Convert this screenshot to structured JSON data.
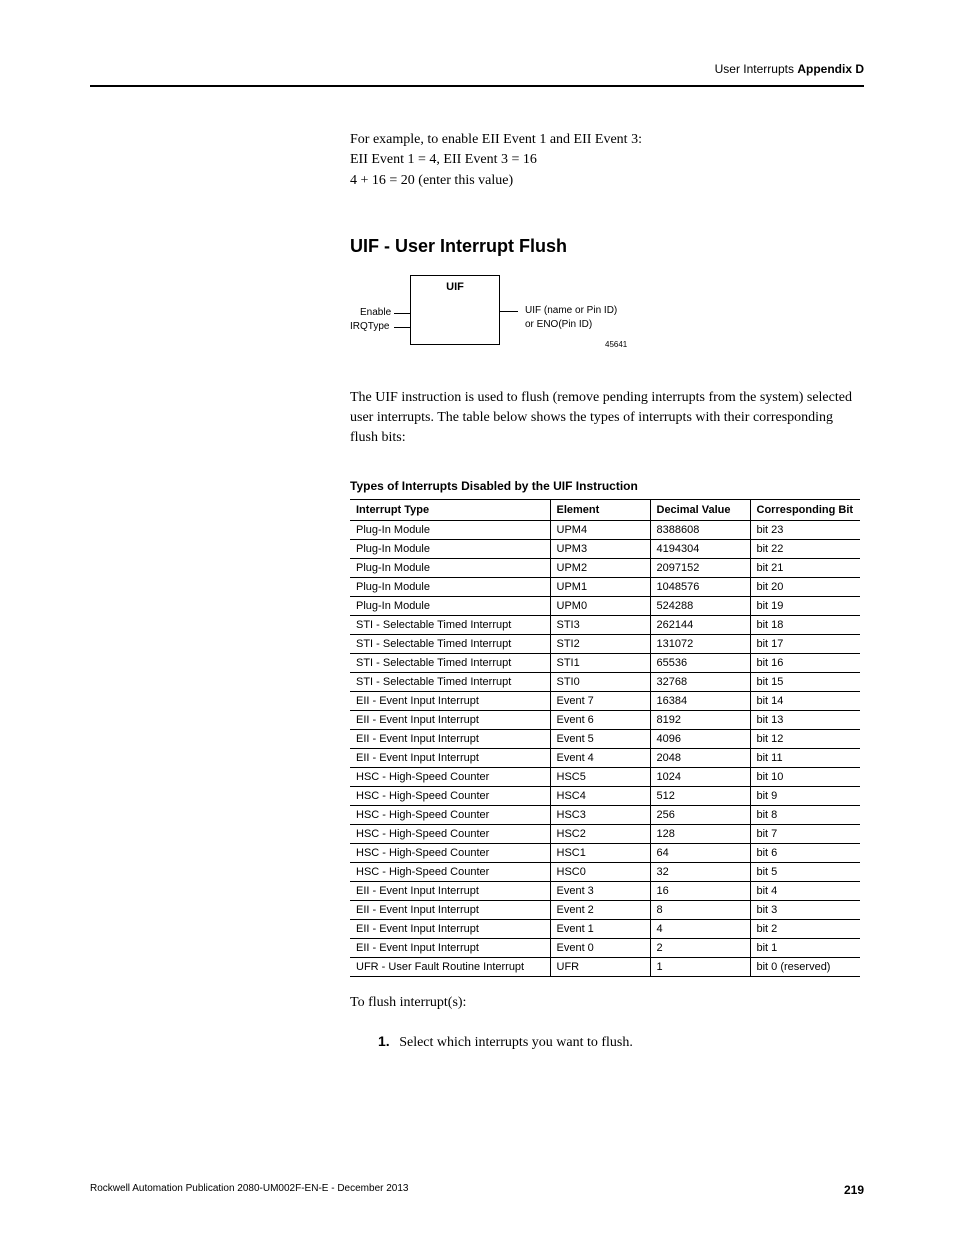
{
  "header": {
    "section": "User Interrupts",
    "appendix": "Appendix D"
  },
  "intro": {
    "line1": "For example, to enable EII Event 1 and EII Event 3:",
    "line2": "EII Event 1 = 4, EII Event 3 = 16",
    "line3": "4 + 16 = 20 (enter this value)"
  },
  "section_title": "UIF - User Interrupt Flush",
  "diagram": {
    "box_label": "UIF",
    "left1": "Enable",
    "left2": "IRQType",
    "right1": "UIF (name or Pin ID)",
    "right2": "or ENO(Pin ID)",
    "id": "45641"
  },
  "body_paragraph": "The UIF instruction is used to flush (remove pending interrupts from the system) selected user interrupts. The table below shows the types of interrupts with their corresponding flush bits:",
  "table_title": "Types of Interrupts Disabled by the UIF Instruction",
  "table": {
    "columns": [
      "Interrupt Type",
      "Element",
      "Decimal Value",
      "Corresponding Bit"
    ],
    "col_widths": [
      "200px",
      "100px",
      "100px",
      "110px"
    ],
    "font_family": "Arial, Helvetica, sans-serif",
    "font_size_pt": 11,
    "border_color": "#000000",
    "rows": [
      [
        "Plug-In Module",
        "UPM4",
        "8388608",
        "bit 23"
      ],
      [
        "Plug-In Module",
        "UPM3",
        "4194304",
        "bit 22"
      ],
      [
        "Plug-In Module",
        "UPM2",
        "2097152",
        "bit 21"
      ],
      [
        "Plug-In Module",
        "UPM1",
        "1048576",
        "bit 20"
      ],
      [
        "Plug-In Module",
        "UPM0",
        "524288",
        "bit 19"
      ],
      [
        "STI - Selectable Timed Interrupt",
        "STI3",
        "262144",
        "bit 18"
      ],
      [
        "STI - Selectable Timed Interrupt",
        "STI2",
        "131072",
        "bit 17"
      ],
      [
        "STI - Selectable Timed Interrupt",
        "STI1",
        "65536",
        "bit 16"
      ],
      [
        "STI - Selectable Timed Interrupt",
        "STI0",
        "32768",
        "bit 15"
      ],
      [
        "EII - Event Input Interrupt",
        "Event 7",
        "16384",
        "bit 14"
      ],
      [
        "EII - Event Input Interrupt",
        "Event 6",
        "8192",
        "bit 13"
      ],
      [
        "EII - Event Input Interrupt",
        "Event 5",
        "4096",
        "bit 12"
      ],
      [
        "EII - Event Input Interrupt",
        "Event 4",
        "2048",
        "bit 11"
      ],
      [
        "HSC - High-Speed Counter",
        "HSC5",
        "1024",
        "bit 10"
      ],
      [
        "HSC - High-Speed Counter",
        "HSC4",
        "512",
        "bit 9"
      ],
      [
        "HSC - High-Speed Counter",
        "HSC3",
        "256",
        "bit 8"
      ],
      [
        "HSC - High-Speed Counter",
        "HSC2",
        "128",
        "bit 7"
      ],
      [
        "HSC - High-Speed Counter",
        "HSC1",
        "64",
        "bit 6"
      ],
      [
        "HSC - High-Speed Counter",
        "HSC0",
        "32",
        "bit 5"
      ],
      [
        "EII - Event Input Interrupt",
        "Event 3",
        "16",
        "bit 4"
      ],
      [
        "EII - Event Input Interrupt",
        "Event 2",
        "8",
        "bit 3"
      ],
      [
        "EII - Event Input Interrupt",
        "Event 1",
        "4",
        "bit 2"
      ],
      [
        "EII - Event Input Interrupt",
        "Event 0",
        "2",
        "bit 1"
      ],
      [
        "UFR - User Fault Routine Interrupt",
        "UFR",
        "1",
        "bit 0 (reserved)"
      ]
    ]
  },
  "flush_text": "To flush interrupt(s):",
  "step": {
    "num": "1.",
    "text": "Select which interrupts you want to flush."
  },
  "footer": {
    "pub": "Rockwell Automation Publication 2080-UM002F-EN-E - December 2013",
    "page": "219"
  },
  "colors": {
    "text": "#000000",
    "background": "#ffffff",
    "rule": "#000000"
  },
  "typography": {
    "body_font": "Georgia, 'Times New Roman', serif",
    "ui_font": "Arial, Helvetica, sans-serif",
    "body_size_pt": 14,
    "heading_size_pt": 18,
    "table_title_size_pt": 12,
    "footer_size_pt": 10
  }
}
